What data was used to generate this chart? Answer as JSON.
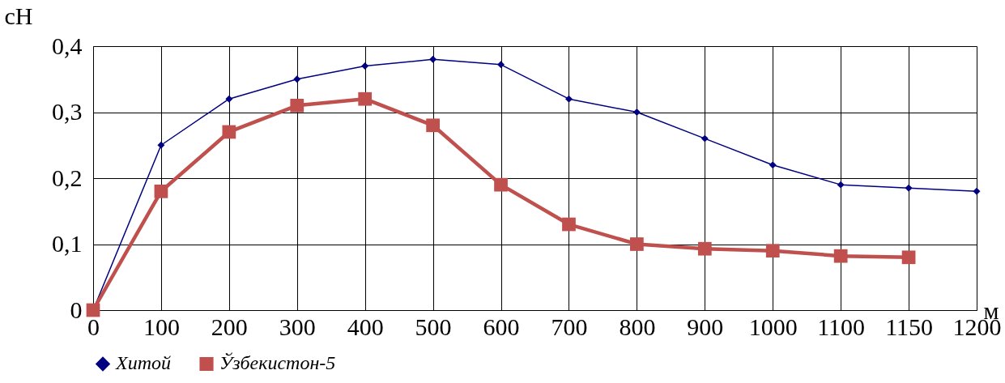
{
  "chart_data": {
    "type": "line",
    "categories": [
      "0",
      "100",
      "200",
      "300",
      "400",
      "500",
      "600",
      "700",
      "800",
      "900",
      "1000",
      "1100",
      "1150",
      "1200"
    ],
    "series": [
      {
        "name": "Хитой",
        "color": "#000080",
        "marker": "diamond",
        "values": [
          0,
          0.25,
          0.32,
          0.35,
          0.37,
          0.38,
          0.372,
          0.32,
          0.3,
          0.26,
          0.22,
          0.19,
          0.185,
          0.18
        ]
      },
      {
        "name": "Ўзбекистон-5",
        "color": "#c0504d",
        "marker": "square",
        "values": [
          0,
          0.18,
          0.27,
          0.31,
          0.32,
          0.28,
          0.19,
          0.13,
          0.1,
          0.093,
          0.09,
          0.082,
          0.08,
          null
        ]
      }
    ],
    "xlabel": "м",
    "ylabel": "сН",
    "ylim": [
      0,
      0.4
    ],
    "yticks": [
      {
        "value": 0,
        "label": "0"
      },
      {
        "value": 0.1,
        "label": "0,1"
      },
      {
        "value": 0.2,
        "label": "0,2"
      },
      {
        "value": 0.3,
        "label": "0,3"
      },
      {
        "value": 0.4,
        "label": "0,4"
      }
    ],
    "grid": true,
    "legend": "bottom"
  }
}
